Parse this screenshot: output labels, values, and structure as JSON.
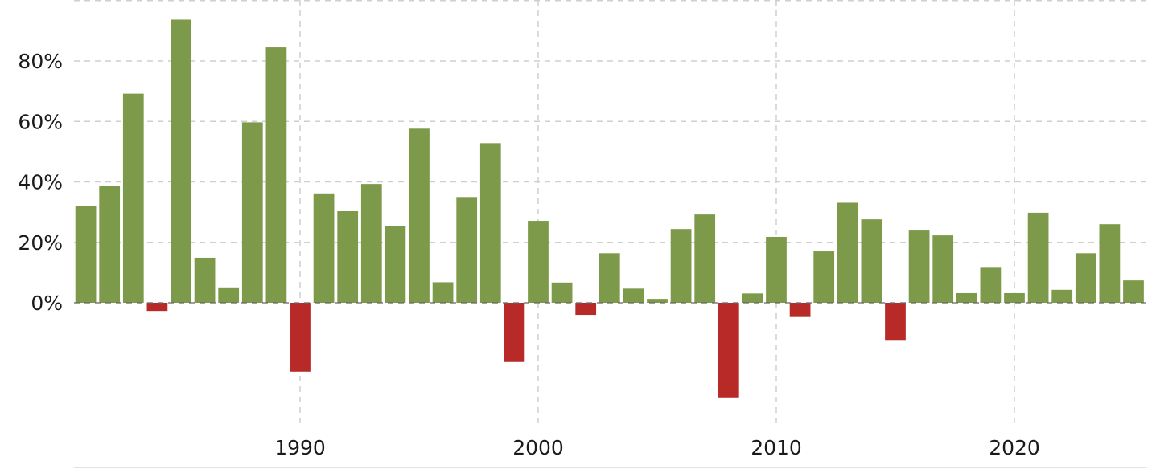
{
  "chart_data": {
    "type": "bar",
    "title": "",
    "xlabel": "",
    "ylabel": "",
    "x": [
      1981,
      1982,
      1983,
      1984,
      1985,
      1986,
      1987,
      1988,
      1989,
      1990,
      1991,
      1992,
      1993,
      1994,
      1995,
      1996,
      1997,
      1998,
      1999,
      2000,
      2001,
      2002,
      2003,
      2004,
      2005,
      2006,
      2007,
      2008,
      2009,
      2010,
      2011,
      2012,
      2013,
      2014,
      2015,
      2016,
      2017,
      2018,
      2019,
      2020,
      2021,
      2022,
      2023,
      2024,
      2025
    ],
    "values": [
      32,
      38.7,
      69.2,
      -2.7,
      93.7,
      14.9,
      5.1,
      59.7,
      84.5,
      -22.8,
      36.2,
      30.3,
      39.3,
      25.4,
      57.6,
      6.8,
      35,
      52.8,
      -19.6,
      27.1,
      6.7,
      -4,
      16.4,
      4.7,
      1.3,
      24.4,
      29.2,
      -31.3,
      3.1,
      21.8,
      -4.7,
      17,
      33.1,
      27.6,
      -12.3,
      23.9,
      22.3,
      3.2,
      11.6,
      3.2,
      29.8,
      4.3,
      16.4,
      26,
      7.4
    ],
    "ylim": [
      -35,
      100
    ],
    "xlim": [
      1980.4,
      2025.9
    ],
    "yticks": [
      0,
      20,
      40,
      60,
      80
    ],
    "ytick_labels": [
      "0%",
      "20%",
      "40%",
      "60%",
      "80%"
    ],
    "xticks": [
      1990,
      2000,
      2010,
      2020
    ],
    "xtick_labels": [
      "1990",
      "2000",
      "2010",
      "2020"
    ],
    "grid": true,
    "legend": "none",
    "colors": {
      "positive": "#7d9a4a",
      "negative": "#b82a28",
      "grid": "#cfcfcf",
      "zero_line": "#666666"
    }
  }
}
